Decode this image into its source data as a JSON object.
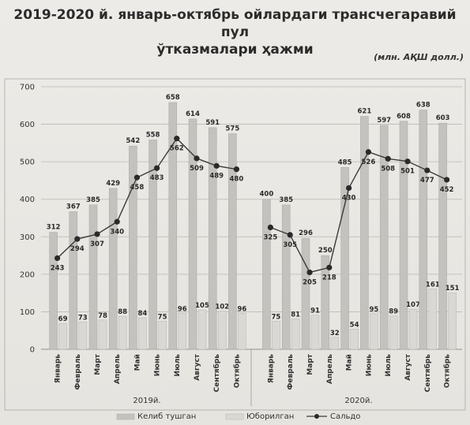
{
  "chart_data": {
    "type": "bar",
    "title_line1": "2019-2020 й. январь-октябрь ойлардаги трансчегаравий пул",
    "title_line2": "ўтказмалари ҳажми",
    "units": "(млн. АҚШ долл.)",
    "ylim": [
      0,
      700
    ],
    "yticks": [
      0,
      100,
      200,
      300,
      400,
      500,
      600,
      700
    ],
    "grid": true,
    "legend_position": "bottom",
    "groups": [
      {
        "name": "2019й.",
        "categories": [
          "Январь",
          "Февраль",
          "Март",
          "Апрель",
          "Май",
          "Июнь",
          "Июль",
          "Август",
          "Сентябрь",
          "Октябрь"
        ],
        "series": [
          {
            "name": "Келиб тушган",
            "values": [
              312,
              367,
              385,
              429,
              542,
              558,
              658,
              614,
              591,
              575
            ]
          },
          {
            "name": "Юборилган",
            "values": [
              69,
              73,
              78,
              88,
              84,
              75,
              96,
              105,
              102,
              96
            ]
          },
          {
            "name": "Сальдо",
            "values": [
              243,
              294,
              307,
              340,
              458,
              483,
              562,
              509,
              489,
              480
            ]
          }
        ]
      },
      {
        "name": "2020й.",
        "categories": [
          "Январь",
          "Февраль",
          "Март",
          "Апрель",
          "Май",
          "Июнь",
          "Июль",
          "Август",
          "Сентябрь",
          "Октябрь"
        ],
        "series": [
          {
            "name": "Келиб тушган",
            "values": [
              400,
              385,
              296,
              250,
              485,
              621,
              597,
              608,
              638,
              603
            ]
          },
          {
            "name": "Юборилган",
            "values": [
              75,
              81,
              91,
              32,
              54,
              95,
              89,
              107,
              161,
              151
            ]
          },
          {
            "name": "Сальдо",
            "values": [
              325,
              305,
              205,
              218,
              430,
              526,
              508,
              501,
              477,
              452
            ]
          }
        ]
      }
    ],
    "legend": [
      "Келиб тушган",
      "Юборилган",
      "Сальдо"
    ],
    "colors": {
      "received": "#c3c2be",
      "sent": "#d9d8d4",
      "saldo_line": "#3a3a3a",
      "saldo_marker": "#2a2a2a"
    }
  }
}
